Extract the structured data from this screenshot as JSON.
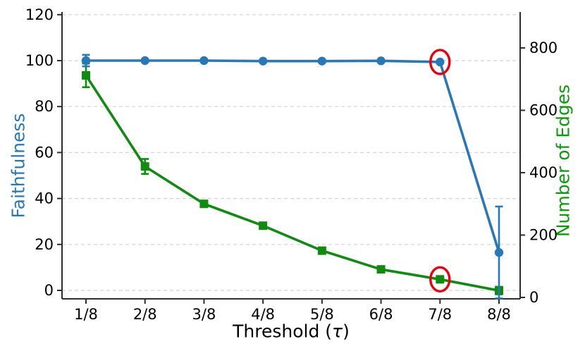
{
  "chart_data": {
    "type": "line",
    "title": "",
    "xlabel": {
      "prefix": "Threshold (",
      "tau": "τ",
      "suffix": ")"
    },
    "x_labels": [
      "1/8",
      "2/8",
      "3/8",
      "4/8",
      "5/8",
      "6/8",
      "7/8",
      "8/8"
    ],
    "left_axis": {
      "label": "Faithfulness",
      "color": "#2878b8",
      "ticks": [
        0,
        20,
        40,
        60,
        80,
        100,
        120
      ],
      "min": 0,
      "max": 120
    },
    "right_axis": {
      "label": "Number of Edges",
      "color": "#0a9a0a",
      "ticks": [
        0,
        200,
        400,
        600,
        800
      ],
      "min": 0,
      "max": 800
    },
    "grid": {
      "horizontal": true,
      "style": "dashed",
      "color": "#d4d4d4"
    },
    "legend": "none",
    "series": [
      {
        "name": "Number of Edges",
        "axis": "right",
        "color": "#0f8b0f",
        "marker": "square",
        "values": [
          712,
          420,
          300,
          230,
          150,
          90,
          58,
          22
        ],
        "errors": [
          38,
          24,
          8,
          5,
          4,
          3,
          3,
          12
        ]
      },
      {
        "name": "Faithfulness",
        "axis": "left",
        "color": "#2878b8",
        "marker": "circle",
        "values": [
          100,
          100,
          100,
          99.8,
          99.8,
          99.9,
          99.4,
          16.5
        ],
        "errors": [
          2.5,
          0,
          0,
          0,
          0,
          0,
          0,
          20
        ]
      }
    ],
    "annotations": [
      {
        "shape": "ellipse",
        "x_label": "7/8",
        "series": "Faithfulness",
        "color": "#e8000e"
      },
      {
        "shape": "ellipse",
        "x_label": "7/8",
        "series": "Number of Edges",
        "color": "#e8000e"
      }
    ]
  }
}
